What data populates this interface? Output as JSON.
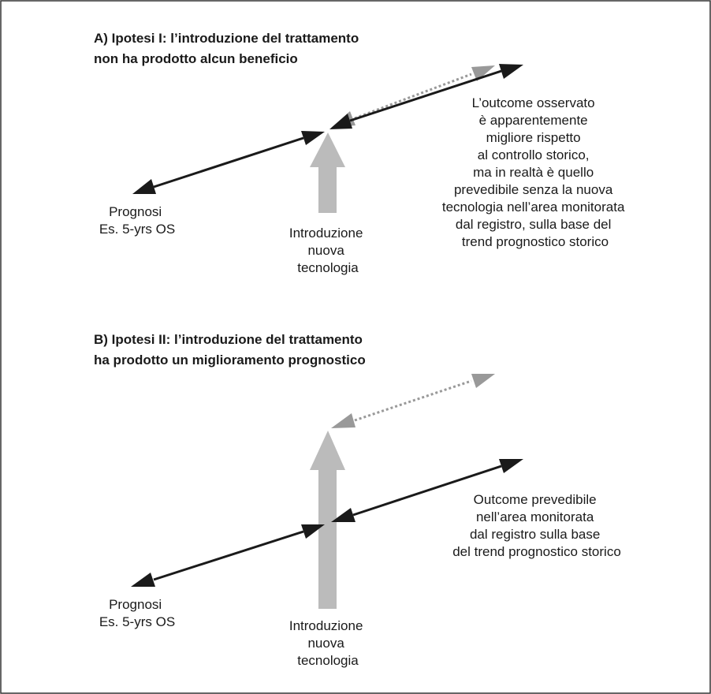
{
  "panel_a": {
    "title_lines": [
      "A) Ipotesi I: l’introduzione del trattamento",
      "non ha prodotto alcun beneficio"
    ],
    "prognosis_lines": [
      "Prognosi",
      "Es. 5-yrs OS"
    ],
    "intervention_lines": [
      "Introduzione",
      "nuova",
      "tecnologia"
    ],
    "note_lines": [
      "L’outcome osservato",
      "è apparentemente",
      "migliore rispetto",
      "al controllo storico,",
      "ma in realtà è quello",
      "prevedibile senza la nuova",
      "tecnologia nell’area monitorata",
      "dal registro, sulla base del",
      "trend prognostico storico"
    ]
  },
  "panel_b": {
    "title_lines": [
      "B) Ipotesi II: l’introduzione del trattamento",
      "ha prodotto un miglioramento prognostico"
    ],
    "prognosis_lines": [
      "Prognosi",
      "Es. 5-yrs OS"
    ],
    "intervention_lines": [
      "Introduzione",
      "nuova",
      "tecnologia"
    ],
    "note_lines": [
      "Outcome prevedibile",
      "nell’area monitorata",
      "dal registro sulla base",
      "del trend prognostico storico"
    ]
  },
  "colors": {
    "border": "#333333",
    "solid_arrow": "#1a1a1a",
    "grey_arrow": "#bbbbbb",
    "dotted_arrow": "#999999",
    "text": "#1a1a1a"
  }
}
